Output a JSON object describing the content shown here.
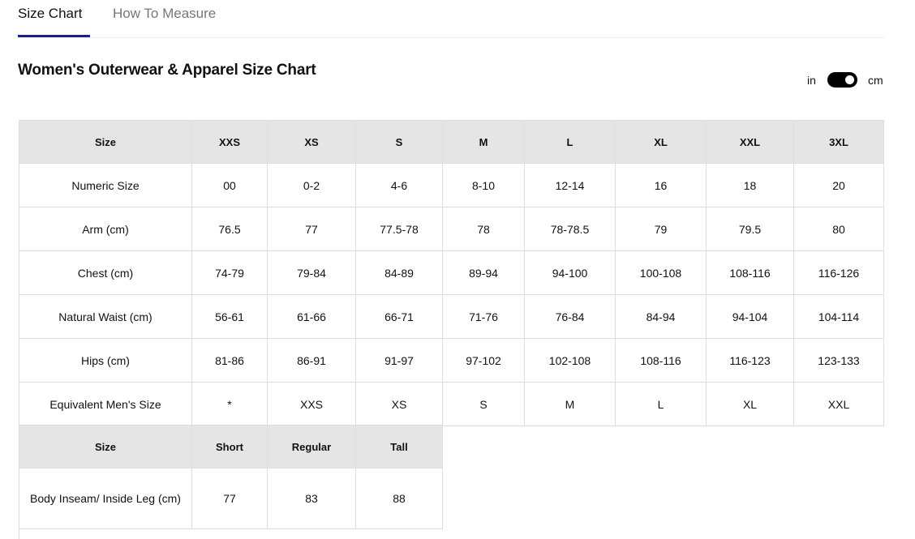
{
  "tabs": [
    {
      "label": "Size Chart",
      "active": true
    },
    {
      "label": "How To Measure",
      "active": false
    }
  ],
  "accent_color": "#1a1f8c",
  "title": "Women's Outerwear & Apparel Size Chart",
  "unit_toggle": {
    "left_label": "in",
    "right_label": "cm",
    "selected": "cm"
  },
  "size_table": {
    "headers": [
      "Size",
      "XXS",
      "XS",
      "S",
      "M",
      "L",
      "XL",
      "XXL",
      "3XL"
    ],
    "rows": [
      [
        "Numeric Size",
        "00",
        "0-2",
        "4-6",
        "8-10",
        "12-14",
        "16",
        "18",
        "20"
      ],
      [
        "Arm (cm)",
        "76.5",
        "77",
        "77.5-78",
        "78",
        "78-78.5",
        "79",
        "79.5",
        "80"
      ],
      [
        "Chest (cm)",
        "74-79",
        "79-84",
        "84-89",
        "89-94",
        "94-100",
        "100-108",
        "108-116",
        "116-126"
      ],
      [
        "Natural Waist (cm)",
        "56-61",
        "61-66",
        "66-71",
        "71-76",
        "76-84",
        "84-94",
        "94-104",
        "104-114"
      ],
      [
        "Hips (cm)",
        "81-86",
        "86-91",
        "91-97",
        "97-102",
        "102-108",
        "108-116",
        "116-123",
        "123-133"
      ],
      [
        "Equivalent Men's Size",
        "*",
        "XXS",
        "XS",
        "S",
        "M",
        "L",
        "XL",
        "XXL"
      ]
    ]
  },
  "inseam_table": {
    "headers": [
      "Size",
      "Short",
      "Regular",
      "Tall"
    ],
    "rows": [
      [
        "Body Inseam/ Inside Leg (cm)",
        "77",
        "83",
        "88"
      ]
    ]
  }
}
